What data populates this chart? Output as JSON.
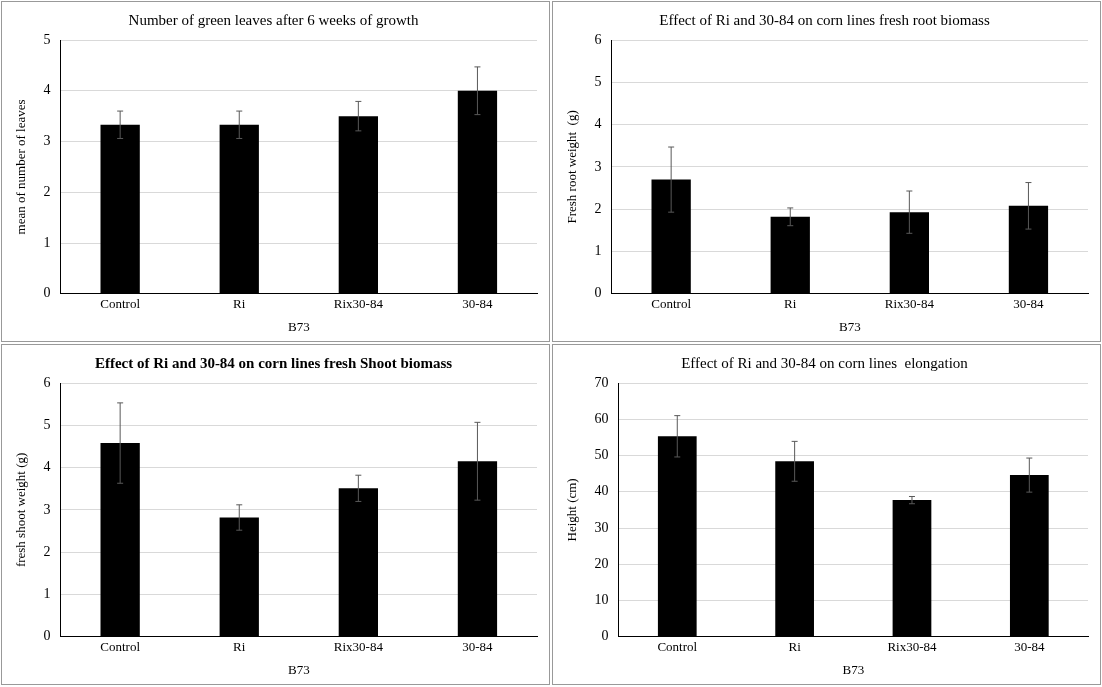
{
  "chart_data": [
    {
      "type": "bar",
      "title": "Number of green leaves after 6 weeks of growth",
      "xlabel": "B73",
      "ylabel": "mean of number of leaves",
      "categories": [
        "Control",
        "Ri",
        "Rix30-84",
        "30-84"
      ],
      "values": [
        3.33,
        3.33,
        3.5,
        4.0
      ],
      "errors": [
        0.27,
        0.27,
        0.29,
        0.47
      ],
      "color": "#000000",
      "ylim": [
        0,
        5
      ],
      "yticks": [
        0,
        1,
        2,
        3,
        4,
        5
      ],
      "grid": "y",
      "legend": false
    },
    {
      "type": "bar",
      "title": "Effect of Ri and 30-84 on corn lines fresh root biomass",
      "xlabel": "B73",
      "ylabel": "Fresh root weight  (g)",
      "categories": [
        "Control",
        "Ri",
        "Rix30-84",
        "30-84"
      ],
      "values": [
        2.7,
        1.82,
        1.93,
        2.08
      ],
      "errors": [
        0.77,
        0.21,
        0.5,
        0.55
      ],
      "color": "#000000",
      "ylim": [
        0,
        6
      ],
      "yticks": [
        0,
        1,
        2,
        3,
        4,
        5,
        6
      ],
      "grid": "y",
      "legend": false
    },
    {
      "type": "bar",
      "title": "Effect of Ri and 30-84 on corn lines fresh Shoot biomass",
      "xlabel": "B73",
      "ylabel": "fresh shoot weight (g)",
      "categories": [
        "Control",
        "Ri",
        "Rix30-84",
        "30-84"
      ],
      "values": [
        4.58,
        2.82,
        3.51,
        4.15
      ],
      "errors": [
        0.95,
        0.3,
        0.31,
        0.92
      ],
      "color": "#000000",
      "ylim": [
        0,
        6
      ],
      "yticks": [
        0,
        1,
        2,
        3,
        4,
        5,
        6
      ],
      "grid": "y",
      "legend": false
    },
    {
      "type": "bar",
      "title": "Effect of Ri and 30-84 on corn lines  elongation",
      "xlabel": "B73",
      "ylabel": "Height (cm)",
      "categories": [
        "Control",
        "Ri",
        "Rix30-84",
        "30-84"
      ],
      "values": [
        55.3,
        48.4,
        37.7,
        44.6
      ],
      "errors": [
        5.7,
        5.5,
        1.0,
        4.7
      ],
      "color": "#000000",
      "ylim": [
        0,
        70
      ],
      "yticks": [
        0,
        10,
        20,
        30,
        40,
        50,
        60,
        70
      ],
      "grid": "y",
      "legend": false
    }
  ]
}
